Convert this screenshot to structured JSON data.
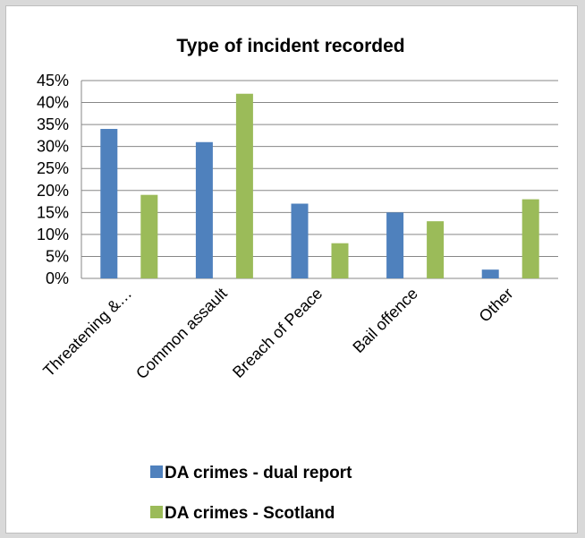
{
  "chart_data": {
    "type": "bar",
    "title": "Type of incident recorded",
    "xlabel": "",
    "ylabel": "",
    "categories": [
      "Threatening &…",
      "Common assault",
      "Breach of Peace",
      "Bail offence",
      "Other"
    ],
    "series": [
      {
        "name": "DA crimes - dual report",
        "values": [
          34,
          31,
          17,
          15,
          2
        ],
        "color": "#4f81bd"
      },
      {
        "name": "DA crimes - Scotland",
        "values": [
          19,
          42,
          8,
          13,
          18
        ],
        "color": "#9bbb59"
      }
    ],
    "ylim": [
      0,
      45
    ],
    "ytick_labels": [
      "0%",
      "5%",
      "10%",
      "15%",
      "20%",
      "25%",
      "30%",
      "35%",
      "40%",
      "45%"
    ],
    "grid": true,
    "legend_position": "bottom"
  }
}
